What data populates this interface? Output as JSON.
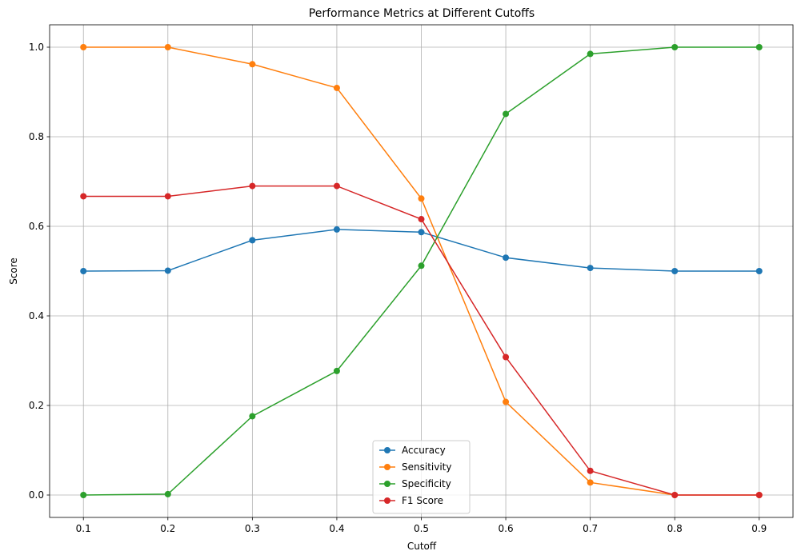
{
  "chart_data": {
    "type": "line",
    "title": "Performance Metrics at Different Cutoffs",
    "xlabel": "Cutoff",
    "ylabel": "Score",
    "x": [
      0.1,
      0.2,
      0.3,
      0.4,
      0.5,
      0.6,
      0.7,
      0.8,
      0.9
    ],
    "xlim": [
      0.06,
      0.94
    ],
    "ylim": [
      -0.05,
      1.05
    ],
    "xticks": [
      "0.1",
      "0.2",
      "0.3",
      "0.4",
      "0.5",
      "0.6",
      "0.7",
      "0.8",
      "0.9"
    ],
    "yticks": [
      "0.0",
      "0.2",
      "0.4",
      "0.6",
      "0.8",
      "1.0"
    ],
    "grid": true,
    "legend_position": "bottom-center",
    "series": [
      {
        "name": "Accuracy",
        "color": "#1f77b4",
        "values": [
          0.5,
          0.501,
          0.569,
          0.593,
          0.587,
          0.53,
          0.507,
          0.5,
          0.5
        ]
      },
      {
        "name": "Sensitivity",
        "color": "#ff7f0e",
        "values": [
          1.0,
          1.0,
          0.962,
          0.909,
          0.662,
          0.208,
          0.028,
          0.0,
          0.0
        ]
      },
      {
        "name": "Specificity",
        "color": "#2ca02c",
        "values": [
          0.0,
          0.002,
          0.176,
          0.277,
          0.512,
          0.851,
          0.985,
          1.0,
          1.0
        ]
      },
      {
        "name": "F1 Score",
        "color": "#d62728",
        "values": [
          0.667,
          0.667,
          0.69,
          0.69,
          0.616,
          0.308,
          0.054,
          0.0,
          0.0
        ]
      }
    ]
  }
}
